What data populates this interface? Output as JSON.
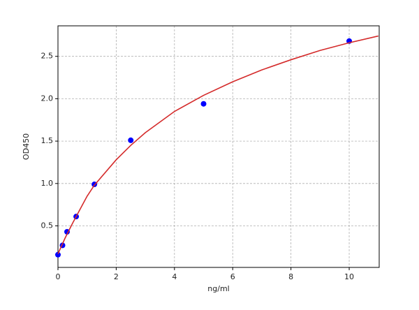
{
  "chart_data": {
    "type": "scatter",
    "xlabel": "ng/ml",
    "ylabel": "OD450",
    "xlim": [
      0,
      11.03
    ],
    "ylim": [
      0.01,
      2.86
    ],
    "xticks": [
      0,
      2,
      4,
      6,
      8,
      10
    ],
    "yticks": [
      0.5,
      {
        "value": 1.0,
        "label": "1.0"
      },
      1.5,
      {
        "value": 2.0,
        "label": "2.0"
      },
      2.5
    ],
    "grid": true,
    "series": [
      {
        "type": "scatter",
        "color": "#0000ff",
        "x": [
          0,
          0.156,
          0.312,
          0.625,
          1.25,
          2.5,
          5,
          10
        ],
        "values": [
          0.16,
          0.27,
          0.43,
          0.61,
          0.99,
          1.51,
          1.94,
          2.68
        ]
      },
      {
        "type": "line",
        "color": "#d42a2a",
        "x": [
          0,
          0.25,
          0.5,
          1,
          1.25,
          2,
          2.5,
          3,
          4,
          5,
          6,
          7,
          8,
          9,
          10,
          11
        ],
        "values": [
          0.17,
          0.36,
          0.53,
          0.85,
          0.98,
          1.28,
          1.45,
          1.6,
          1.85,
          2.04,
          2.2,
          2.34,
          2.46,
          2.57,
          2.66,
          2.74
        ]
      }
    ]
  }
}
